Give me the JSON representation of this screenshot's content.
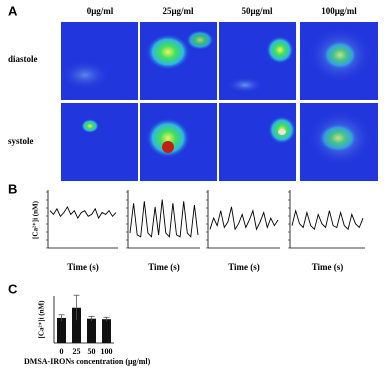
{
  "panel_labels": [
    "A",
    "B",
    "C"
  ],
  "panel_a": {
    "columns": [
      "0μg/ml",
      "25μg/ml",
      "50μg/ml",
      "100μg/ml"
    ],
    "rows": [
      "diastole",
      "systole"
    ]
  },
  "chart_data": [
    {
      "type": "line",
      "y_label": "[Ca²⁺]i (nM)",
      "x_label": "Time (s)",
      "ylim": [
        50,
        200
      ],
      "color": "#000000",
      "values": [
        150,
        140,
        155,
        135,
        145,
        160,
        140,
        150,
        130,
        145,
        150,
        135,
        140,
        155,
        130,
        145,
        140,
        150,
        135,
        145
      ]
    },
    {
      "type": "line",
      "x_label": "Time (s)",
      "ylim": [
        50,
        200
      ],
      "color": "#000000",
      "values": [
        90,
        170,
        85,
        80,
        175,
        90,
        80,
        160,
        85,
        180,
        90,
        80,
        170,
        85,
        80,
        175,
        90,
        80,
        165,
        85
      ]
    },
    {
      "type": "line",
      "x_label": "Time (s)",
      "ylim": [
        50,
        200
      ],
      "color": "#000000",
      "values": [
        100,
        130,
        110,
        150,
        105,
        120,
        160,
        100,
        115,
        140,
        105,
        125,
        150,
        100,
        120,
        145,
        105,
        130,
        110,
        125
      ]
    },
    {
      "type": "line",
      "x_label": "Time (s)",
      "ylim": [
        50,
        200
      ],
      "color": "#000000",
      "values": [
        110,
        150,
        115,
        105,
        145,
        110,
        100,
        140,
        115,
        105,
        150,
        110,
        105,
        145,
        110,
        100,
        140,
        115,
        105,
        130
      ]
    },
    {
      "type": "bar",
      "y_label": "[Ca²⁺]i (nM)",
      "x_label": "DMSA-IRONs concentration (μg/ml)",
      "color": "#111111",
      "categories": [
        "0",
        "25",
        "50",
        "100"
      ],
      "values": [
        160,
        225,
        155,
        152
      ],
      "errors": [
        20,
        80,
        15,
        12
      ],
      "ylim": [
        0,
        300
      ]
    }
  ]
}
